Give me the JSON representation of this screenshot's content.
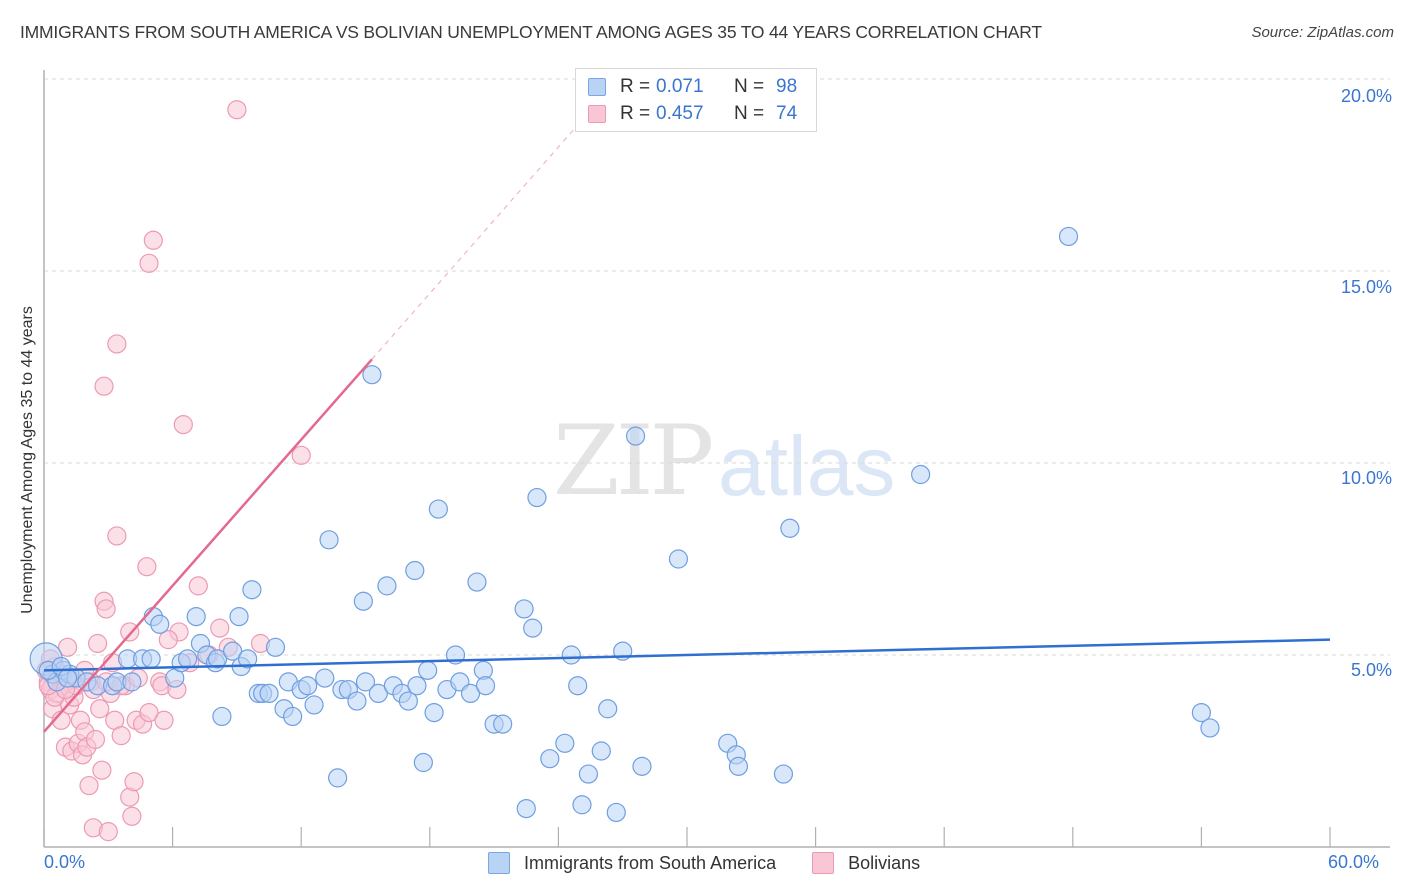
{
  "header": {
    "title": "IMMIGRANTS FROM SOUTH AMERICA VS BOLIVIAN UNEMPLOYMENT AMONG AGES 35 TO 44 YEARS CORRELATION CHART",
    "source": "Source: ZipAtlas.com"
  },
  "watermark": {
    "zip": "ZIP",
    "atlas": "atlas"
  },
  "legend": {
    "series": [
      {
        "r_label": "R =",
        "r_value": "0.071",
        "n_label": "N =",
        "n_value": "98",
        "fill": "#b9d3f5",
        "stroke": "#7aa6e6"
      },
      {
        "r_label": "R =",
        "r_value": "0.457",
        "n_label": "N =",
        "n_value": "74",
        "fill": "#f9c6d6",
        "stroke": "#ec9ab4"
      }
    ]
  },
  "bottom_legend": [
    {
      "label": "Immigrants from South America",
      "fill": "#b9d3f5",
      "stroke": "#7aa6e6"
    },
    {
      "label": "Bolivians",
      "fill": "#f9c6d6",
      "stroke": "#ec9ab4"
    }
  ],
  "axes": {
    "y_label": "Unemployment Among Ages 35 to 44 years",
    "y_ticks": [
      "20.0%",
      "15.0%",
      "10.0%",
      "5.0%"
    ],
    "x_ticks": [
      "0.0%",
      "60.0%"
    ]
  },
  "colors": {
    "blue_line": "#2f6fd1",
    "pink_line": "#e4698f",
    "blue_fill": "#b9d3f5",
    "blue_stroke": "#6f9fe0",
    "pink_fill": "#f9c6d6",
    "pink_stroke": "#ec9ab4",
    "tick_label": "#3a76d0"
  },
  "chart_data": {
    "type": "scatter",
    "title": "IMMIGRANTS FROM SOUTH AMERICA VS BOLIVIAN UNEMPLOYMENT AMONG AGES 35 TO 44 YEARS CORRELATION CHART",
    "xlabel": "",
    "ylabel": "Unemployment Among Ages 35 to 44 years",
    "xlim": [
      0,
      60
    ],
    "ylim": [
      0,
      20.5
    ],
    "x_tick_labels": [
      "0.0%",
      "60.0%"
    ],
    "y_tick_labels": [
      "5.0%",
      "10.0%",
      "15.0%",
      "20.0%"
    ],
    "grid": "horizontal dashed at 5, 10, 15, 20",
    "legend_position": "top-center (stats) and bottom-center (series)",
    "series": [
      {
        "name": "Immigrants from South America",
        "R": 0.071,
        "N": 98,
        "trendline": {
          "x": [
            0,
            60
          ],
          "y": [
            4.6,
            5.4
          ]
        },
        "points": [
          [
            0.1,
            4.9
          ],
          [
            0.4,
            4.5
          ],
          [
            0.6,
            4.3
          ],
          [
            0.9,
            4.6
          ],
          [
            1.2,
            4.5
          ],
          [
            1.5,
            4.4
          ],
          [
            2.0,
            4.3
          ],
          [
            2.5,
            4.2
          ],
          [
            3.2,
            4.2
          ],
          [
            3.4,
            4.3
          ],
          [
            3.9,
            4.9
          ],
          [
            4.1,
            4.3
          ],
          [
            4.6,
            4.9
          ],
          [
            5.0,
            4.9
          ],
          [
            5.1,
            6.0
          ],
          [
            5.4,
            5.8
          ],
          [
            6.1,
            4.4
          ],
          [
            6.4,
            4.8
          ],
          [
            6.7,
            4.9
          ],
          [
            7.1,
            6.0
          ],
          [
            7.3,
            5.3
          ],
          [
            7.6,
            5.0
          ],
          [
            8.0,
            4.8
          ],
          [
            8.1,
            4.9
          ],
          [
            8.3,
            3.4
          ],
          [
            8.8,
            5.1
          ],
          [
            9.1,
            6.0
          ],
          [
            9.2,
            4.7
          ],
          [
            9.5,
            4.9
          ],
          [
            9.7,
            6.7
          ],
          [
            10.0,
            4.0
          ],
          [
            10.2,
            4.0
          ],
          [
            10.5,
            4.0
          ],
          [
            10.8,
            5.2
          ],
          [
            11.2,
            3.6
          ],
          [
            11.4,
            4.3
          ],
          [
            11.6,
            3.4
          ],
          [
            12.0,
            4.1
          ],
          [
            12.3,
            4.2
          ],
          [
            12.6,
            3.7
          ],
          [
            13.1,
            4.4
          ],
          [
            13.3,
            8.0
          ],
          [
            13.7,
            1.8
          ],
          [
            13.9,
            4.1
          ],
          [
            14.2,
            4.1
          ],
          [
            14.6,
            3.8
          ],
          [
            14.9,
            6.4
          ],
          [
            15.0,
            4.3
          ],
          [
            15.3,
            12.3
          ],
          [
            15.6,
            4.0
          ],
          [
            16.0,
            6.8
          ],
          [
            16.3,
            4.2
          ],
          [
            16.7,
            4.0
          ],
          [
            17.0,
            3.8
          ],
          [
            17.3,
            7.2
          ],
          [
            17.4,
            4.2
          ],
          [
            17.7,
            2.2
          ],
          [
            17.9,
            4.6
          ],
          [
            18.2,
            3.5
          ],
          [
            18.4,
            8.8
          ],
          [
            18.8,
            4.1
          ],
          [
            19.2,
            5.0
          ],
          [
            19.4,
            4.3
          ],
          [
            19.9,
            4.0
          ],
          [
            20.2,
            6.9
          ],
          [
            20.5,
            4.6
          ],
          [
            20.6,
            4.2
          ],
          [
            21.0,
            3.2
          ],
          [
            21.4,
            3.2
          ],
          [
            22.4,
            6.2
          ],
          [
            22.5,
            1.0
          ],
          [
            22.8,
            5.7
          ],
          [
            23.0,
            9.1
          ],
          [
            23.6,
            2.3
          ],
          [
            24.3,
            2.7
          ],
          [
            24.6,
            5.0
          ],
          [
            24.9,
            4.2
          ],
          [
            25.1,
            1.1
          ],
          [
            25.4,
            1.9
          ],
          [
            26.0,
            2.5
          ],
          [
            26.3,
            3.6
          ],
          [
            26.7,
            0.9
          ],
          [
            27.0,
            5.1
          ],
          [
            27.6,
            10.7
          ],
          [
            27.9,
            2.1
          ],
          [
            29.6,
            7.5
          ],
          [
            31.9,
            2.7
          ],
          [
            32.3,
            2.4
          ],
          [
            32.4,
            2.1
          ],
          [
            34.5,
            1.9
          ],
          [
            34.8,
            8.3
          ],
          [
            40.9,
            9.7
          ],
          [
            47.8,
            15.9
          ],
          [
            54.0,
            3.5
          ],
          [
            54.4,
            3.1
          ],
          [
            0.2,
            4.6
          ],
          [
            0.8,
            4.7
          ],
          [
            1.1,
            4.4
          ]
        ]
      },
      {
        "name": "Bolivians",
        "R": 0.457,
        "N": 74,
        "trendline": {
          "x": [
            0,
            15.3
          ],
          "y": [
            3.0,
            12.7
          ],
          "extended_dashed_to": [
            26.0,
            19.5
          ]
        },
        "points": [
          [
            0.1,
            4.6
          ],
          [
            0.2,
            4.3
          ],
          [
            0.3,
            4.1
          ],
          [
            0.4,
            3.6
          ],
          [
            0.5,
            4.7
          ],
          [
            0.6,
            4.0
          ],
          [
            0.7,
            4.4
          ],
          [
            0.8,
            3.3
          ],
          [
            0.9,
            4.2
          ],
          [
            1.0,
            2.6
          ],
          [
            1.1,
            5.2
          ],
          [
            1.2,
            3.7
          ],
          [
            1.3,
            2.5
          ],
          [
            1.4,
            3.9
          ],
          [
            1.5,
            4.2
          ],
          [
            1.6,
            2.7
          ],
          [
            1.7,
            3.3
          ],
          [
            1.8,
            2.4
          ],
          [
            1.9,
            3.0
          ],
          [
            2.0,
            2.6
          ],
          [
            2.1,
            1.6
          ],
          [
            2.2,
            4.3
          ],
          [
            2.3,
            0.5
          ],
          [
            2.4,
            2.8
          ],
          [
            2.5,
            5.3
          ],
          [
            2.6,
            3.6
          ],
          [
            2.7,
            2.0
          ],
          [
            2.8,
            6.4
          ],
          [
            2.9,
            6.2
          ],
          [
            2.8,
            12.0
          ],
          [
            3.0,
            0.4
          ],
          [
            3.1,
            4.0
          ],
          [
            3.2,
            4.8
          ],
          [
            3.3,
            3.3
          ],
          [
            3.4,
            8.1
          ],
          [
            3.4,
            13.1
          ],
          [
            3.6,
            2.9
          ],
          [
            3.8,
            4.2
          ],
          [
            4.0,
            5.6
          ],
          [
            4.0,
            1.3
          ],
          [
            4.1,
            0.8
          ],
          [
            4.2,
            1.7
          ],
          [
            4.3,
            3.3
          ],
          [
            4.6,
            3.2
          ],
          [
            4.8,
            7.3
          ],
          [
            4.9,
            3.5
          ],
          [
            4.9,
            15.2
          ],
          [
            5.1,
            15.8
          ],
          [
            5.4,
            4.3
          ],
          [
            5.5,
            4.2
          ],
          [
            5.6,
            3.3
          ],
          [
            6.3,
            5.6
          ],
          [
            6.5,
            11.0
          ],
          [
            6.8,
            4.8
          ],
          [
            7.2,
            6.8
          ],
          [
            8.2,
            5.7
          ],
          [
            8.6,
            5.2
          ],
          [
            9.0,
            19.2
          ],
          [
            10.1,
            5.3
          ],
          [
            12.0,
            10.2
          ],
          [
            0.3,
            4.9
          ],
          [
            0.5,
            3.9
          ],
          [
            0.9,
            4.5
          ],
          [
            1.3,
            4.4
          ],
          [
            1.9,
            4.6
          ],
          [
            2.3,
            4.1
          ],
          [
            2.9,
            4.3
          ],
          [
            3.6,
            4.2
          ],
          [
            4.4,
            4.4
          ],
          [
            5.8,
            5.4
          ],
          [
            6.2,
            4.1
          ],
          [
            7.7,
            5.0
          ],
          [
            0.2,
            4.2
          ],
          [
            1.0,
            4.1
          ]
        ]
      }
    ]
  }
}
